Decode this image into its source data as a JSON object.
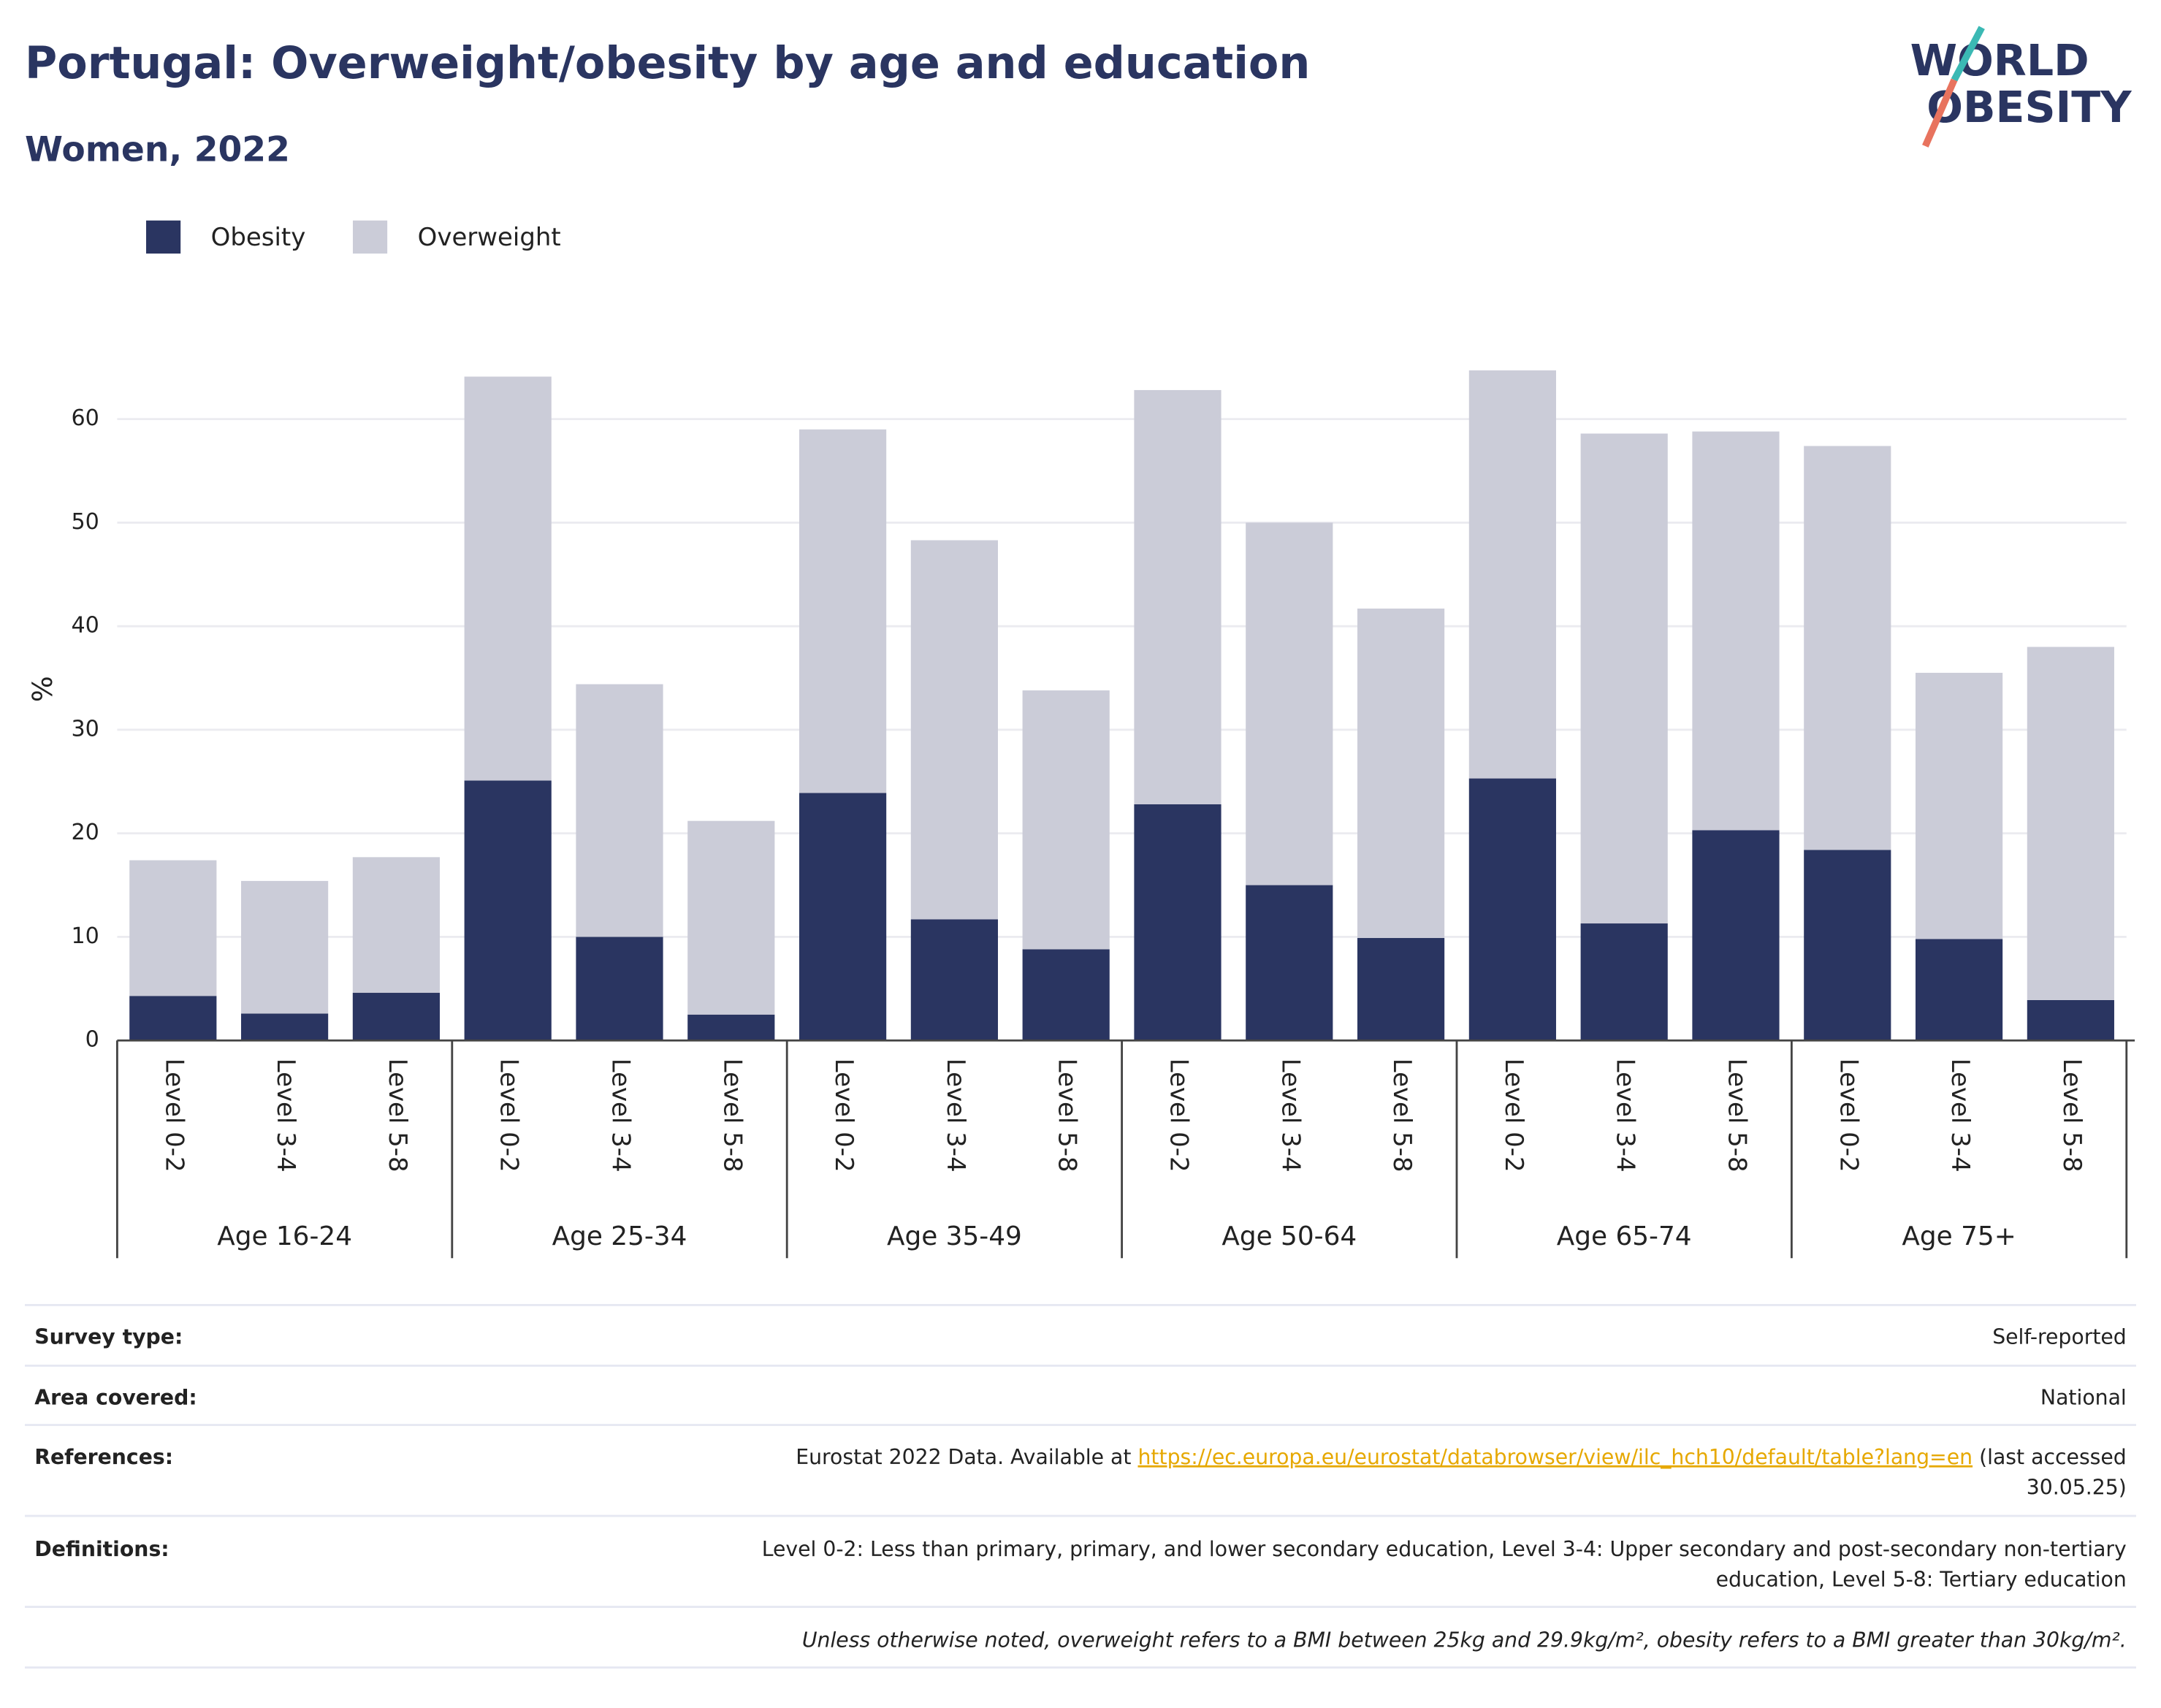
{
  "chart_data": {
    "type": "stacked_bar",
    "title": "Portugal: Overweight/obesity by age and education",
    "subtitle": "Women, 2022",
    "y_label": "%",
    "categories": [
      "Level 0-2",
      "Level 3-4",
      "Level 5-8",
      "Level 0-2",
      "Level 3-4",
      "Level 5-8",
      "Level 0-2",
      "Level 3-4",
      "Level 5-8",
      "Level 0-2",
      "Level 3-4",
      "Level 5-8",
      "Level 0-2",
      "Level 3-4",
      "Level 5-8",
      "Level 0-2",
      "Level 3-4",
      "Level 5-8"
    ],
    "groups": [
      "Age 16-24",
      "Age 25-34",
      "Age 35-49",
      "Age 50-64",
      "Age 65-74",
      "Age 75+"
    ],
    "series": [
      {
        "name": "Obesity",
        "color": "#2a3561",
        "values": [
          4.3,
          2.6,
          4.6,
          25.1,
          10.0,
          2.5,
          23.9,
          11.7,
          8.8,
          22.8,
          15.0,
          9.9,
          25.3,
          11.3,
          20.3,
          18.4,
          9.8,
          3.9
        ]
      },
      {
        "name": "Overweight",
        "color": "#cbccd8",
        "values": [
          13.1,
          12.8,
          13.1,
          39.0,
          24.4,
          18.7,
          35.1,
          36.6,
          25.0,
          40.0,
          35.0,
          31.8,
          39.4,
          47.3,
          38.5,
          39.0,
          25.7,
          34.1
        ]
      }
    ],
    "ylim": [
      0,
      66
    ],
    "yticks": [
      0,
      10,
      20,
      30,
      40,
      50,
      60
    ],
    "grid": true,
    "legend": "top-left"
  },
  "logo": {
    "line1": "WORLD",
    "line2": "OBESITY"
  },
  "footer": {
    "rows": [
      {
        "label": "Survey type:",
        "lines": [
          [
            "Self-reported"
          ]
        ]
      },
      {
        "label": "Area covered:",
        "lines": [
          [
            "National"
          ]
        ]
      },
      {
        "label": "References:",
        "lines": [
          [
            "Eurostat 2022 Data. Available at",
            "https://ec.europa.eu/eurostat/databrowser/view/ilc_hch10/default/table?lang=en",
            "(last accessed"
          ],
          [
            "30.05.25)"
          ]
        ]
      },
      {
        "label": "Definitions:",
        "lines": [
          [
            "Level 0-2: Less than primary, primary, and lower secondary education, Level 3-4: Upper secondary and post-secondary non-tertiary"
          ],
          [
            "education, Level 5-8: Tertiary education"
          ]
        ]
      }
    ],
    "note": "Unless otherwise noted, overweight refers to a BMI between 25kg and 29.9kg/m², obesity refers to a BMI greater than 30kg/m²."
  }
}
